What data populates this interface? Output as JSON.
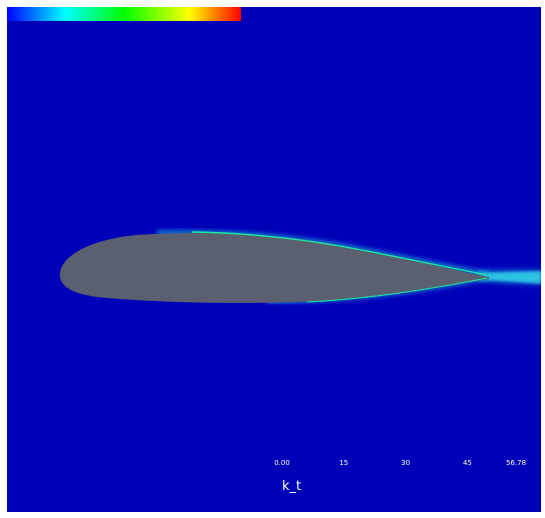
{
  "colors": {
    "background": "#0000b8",
    "airfoil": "#5a6070",
    "wake": "#22c8d8",
    "edge": "#10e090"
  },
  "colorbar": {
    "title": "k_t",
    "ticks": [
      "0.00",
      "15",
      "30",
      "45",
      "56.78"
    ],
    "tick_values": [
      0,
      15,
      30,
      45,
      56.78
    ],
    "range": [
      0,
      56.78
    ],
    "colormap": [
      "#0000ff",
      "#00ffff",
      "#00ff00",
      "#ffff00",
      "#ff0000"
    ]
  }
}
